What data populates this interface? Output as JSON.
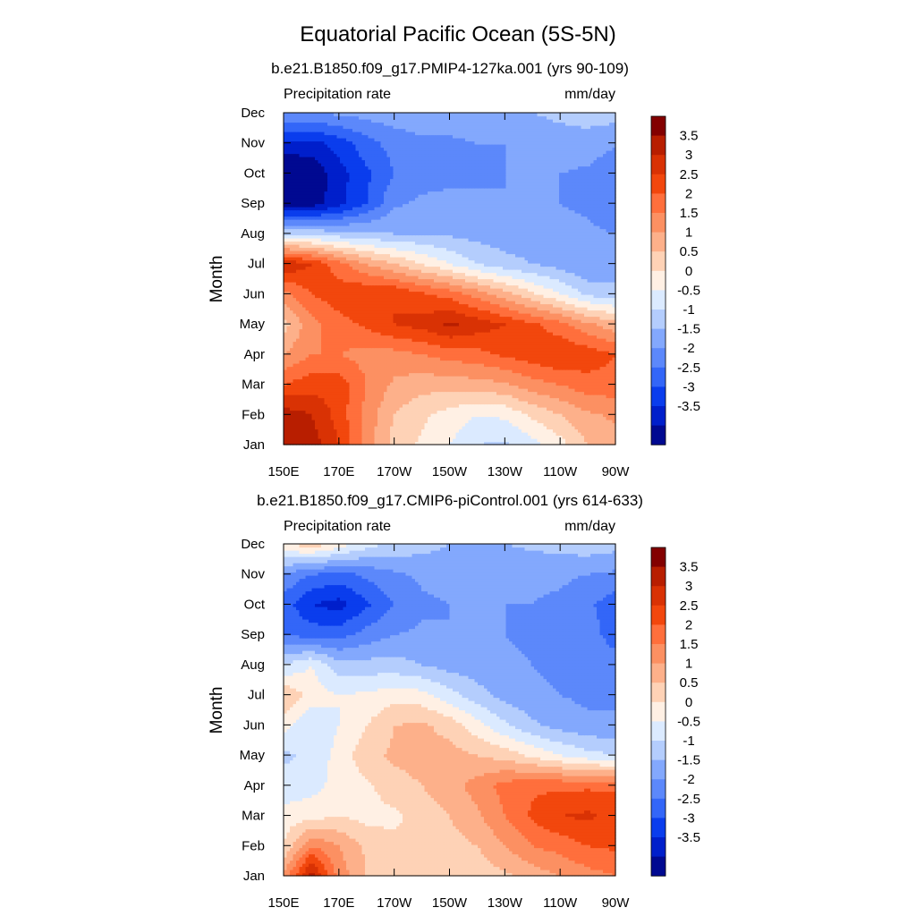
{
  "figure": {
    "title": "Equatorial Pacific Ocean (5S-5N)"
  },
  "colorbar": {
    "labels": [
      "3.5",
      "3",
      "2.5",
      "2",
      "1.5",
      "1",
      "0.5",
      "0",
      "-0.5",
      "-1",
      "-1.5",
      "-2",
      "-2.5",
      "-3",
      "-3.5"
    ],
    "colors": [
      "#830000",
      "#b81e00",
      "#d93204",
      "#f2470d",
      "#ff6f3c",
      "#fc9062",
      "#fdb08a",
      "#fed2b6",
      "#fff0e4",
      "#dbeaff",
      "#b4cdfd",
      "#83a8fd",
      "#5c88fb",
      "#3366f8",
      "#0a3ded",
      "#001fcb",
      "#000991"
    ]
  },
  "chart_data": [
    {
      "type": "heatmap",
      "subtitle": "b.e21.B1850.f09_g17.PMIP4-127ka.001 (yrs 90-109)",
      "left_string": "Precipitation rate",
      "right_string": "mm/day",
      "ylabel": "Month",
      "x_ticks": [
        "150E",
        "170E",
        "170W",
        "150W",
        "130W",
        "110W",
        "90W"
      ],
      "y_ticks": [
        "Jan",
        "Feb",
        "Mar",
        "Apr",
        "May",
        "Jun",
        "Jul",
        "Aug",
        "Sep",
        "Oct",
        "Nov",
        "Dec"
      ],
      "x_range": [
        "150E",
        "90W"
      ],
      "y_range": [
        "Jan",
        "Dec"
      ],
      "values": [
        [
          3.8,
          3.8,
          3.0,
          1.8,
          0.8,
          0.4,
          0.0,
          -0.5,
          -0.6,
          -0.2,
          0.3,
          1.0,
          1.3
        ],
        [
          3.8,
          3.5,
          2.8,
          1.8,
          1.0,
          0.6,
          0.3,
          0.0,
          0.1,
          0.6,
          1.0,
          1.4,
          1.6
        ],
        [
          2.5,
          2.8,
          2.8,
          2.0,
          1.4,
          1.2,
          1.2,
          1.3,
          1.4,
          1.8,
          2.0,
          2.3,
          2.3
        ],
        [
          1.5,
          2.0,
          2.0,
          1.8,
          1.8,
          2.0,
          2.2,
          2.3,
          2.6,
          2.8,
          3.0,
          2.8,
          2.5
        ],
        [
          0.8,
          1.8,
          2.3,
          2.6,
          3.0,
          3.2,
          3.6,
          3.3,
          3.0,
          2.6,
          2.2,
          1.6,
          1.2
        ],
        [
          1.8,
          2.5,
          2.8,
          3.0,
          3.0,
          2.6,
          2.3,
          1.8,
          1.2,
          0.6,
          0.0,
          -0.6,
          -0.8
        ],
        [
          3.5,
          3.0,
          2.2,
          1.5,
          1.0,
          0.5,
          0.0,
          -0.5,
          -0.8,
          -1.0,
          -1.2,
          -1.5,
          -1.3
        ],
        [
          -0.5,
          -0.6,
          -0.8,
          -0.9,
          -1.0,
          -1.0,
          -1.1,
          -1.2,
          -1.3,
          -1.3,
          -1.3,
          -1.4,
          -1.5
        ],
        [
          -3.8,
          -3.8,
          -3.2,
          -2.5,
          -1.6,
          -1.4,
          -1.4,
          -1.4,
          -1.5,
          -1.5,
          -1.5,
          -1.6,
          -1.9
        ],
        [
          -4.0,
          -3.9,
          -3.2,
          -2.6,
          -2.0,
          -1.7,
          -1.6,
          -1.6,
          -1.5,
          -1.5,
          -1.5,
          -1.6,
          -2.0
        ],
        [
          -3.2,
          -3.2,
          -2.8,
          -2.2,
          -1.8,
          -1.6,
          -1.6,
          -1.5,
          -1.5,
          -1.3,
          -1.2,
          -1.2,
          -1.4
        ],
        [
          -1.5,
          -1.5,
          -1.4,
          -1.3,
          -1.2,
          -1.2,
          -1.2,
          -1.1,
          -1.1,
          -1.0,
          -0.9,
          -0.8,
          -0.8
        ]
      ]
    },
    {
      "type": "heatmap",
      "subtitle": "b.e21.B1850.f09_g17.CMIP6-piControl.001 (yrs 614-633)",
      "left_string": "Precipitation rate",
      "right_string": "mm/day",
      "ylabel": "Month",
      "x_ticks": [
        "150E",
        "170E",
        "170W",
        "150W",
        "130W",
        "110W",
        "90W"
      ],
      "y_ticks": [
        "Jan",
        "Feb",
        "Mar",
        "Apr",
        "May",
        "Jun",
        "Jul",
        "Aug",
        "Sep",
        "Oct",
        "Nov",
        "Dec"
      ],
      "x_range": [
        "150E",
        "90W"
      ],
      "y_range": [
        "Jan",
        "Dec"
      ],
      "values": [
        [
          1.6,
          3.8,
          1.8,
          1.0,
          0.6,
          0.6,
          0.6,
          0.7,
          0.9,
          1.2,
          1.5,
          1.8,
          2.0
        ],
        [
          0.5,
          2.0,
          1.5,
          0.9,
          0.6,
          0.6,
          0.8,
          1.0,
          1.5,
          2.0,
          2.2,
          2.5,
          2.6
        ],
        [
          0.2,
          0.3,
          0.5,
          0.3,
          0.4,
          0.7,
          1.0,
          1.4,
          2.0,
          2.6,
          3.0,
          3.1,
          2.8
        ],
        [
          -0.3,
          -0.2,
          0.2,
          0.4,
          0.8,
          1.0,
          1.3,
          1.7,
          2.2,
          2.4,
          2.4,
          2.4,
          2.4
        ],
        [
          -0.6,
          -0.4,
          0.2,
          0.8,
          1.1,
          1.2,
          1.2,
          1.0,
          0.8,
          0.4,
          0.0,
          -0.3,
          -0.5
        ],
        [
          0.2,
          -0.5,
          0.0,
          0.5,
          1.0,
          1.1,
          0.8,
          0.2,
          -0.4,
          -0.9,
          -1.2,
          -1.4,
          -1.4
        ],
        [
          1.0,
          0.3,
          0.0,
          0.1,
          0.3,
          0.2,
          -0.3,
          -0.8,
          -1.2,
          -1.4,
          -1.5,
          -1.6,
          -1.6
        ],
        [
          -0.5,
          0.0,
          -0.8,
          -0.8,
          -0.8,
          -1.0,
          -1.2,
          -1.3,
          -1.4,
          -1.5,
          -1.6,
          -1.7,
          -1.8
        ],
        [
          -2.0,
          -2.2,
          -2.2,
          -1.8,
          -1.5,
          -1.4,
          -1.5,
          -1.5,
          -1.5,
          -1.6,
          -1.6,
          -1.8,
          -2.2
        ],
        [
          -2.2,
          -3.0,
          -3.2,
          -2.6,
          -2.0,
          -1.6,
          -1.5,
          -1.5,
          -1.5,
          -1.5,
          -1.6,
          -1.9,
          -2.3
        ],
        [
          -1.6,
          -2.0,
          -2.2,
          -1.9,
          -1.6,
          -1.4,
          -1.3,
          -1.4,
          -1.4,
          -1.4,
          -1.4,
          -1.5,
          -1.6
        ],
        [
          0.4,
          0.8,
          0.3,
          -0.3,
          -0.6,
          -0.8,
          -1.0,
          -1.0,
          -1.0,
          -0.9,
          -0.8,
          -0.7,
          -0.8
        ]
      ]
    }
  ]
}
